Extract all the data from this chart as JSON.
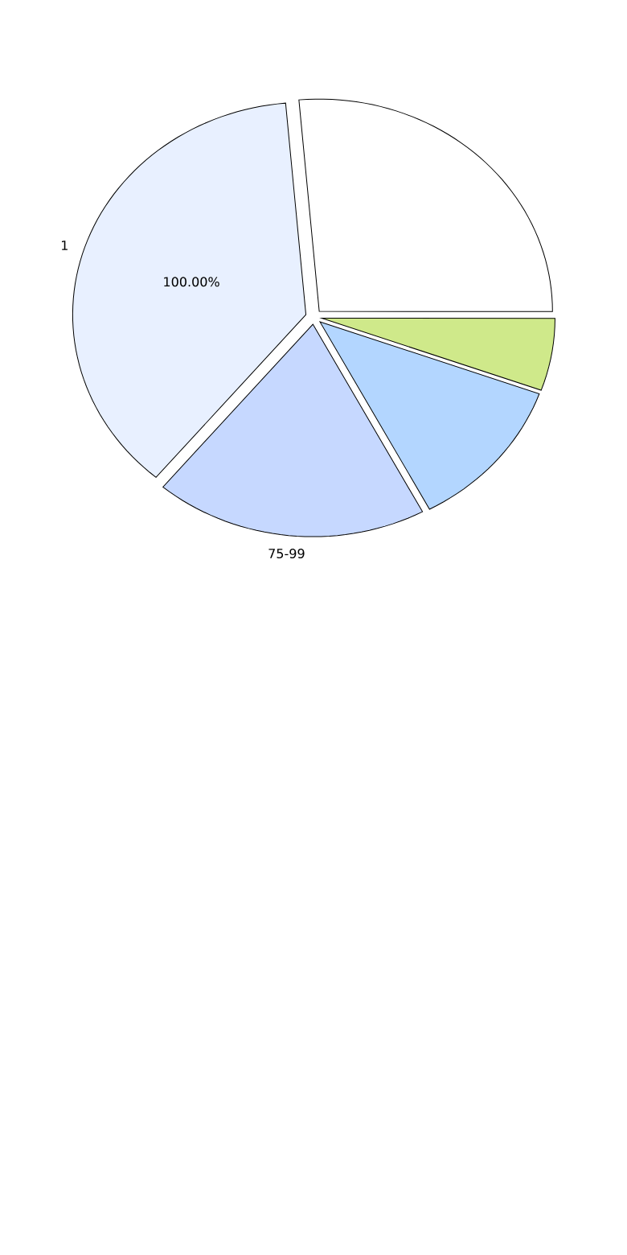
{
  "chart_data": {
    "type": "pie",
    "categories": [
      null,
      null,
      null,
      "75-99",
      "1"
    ],
    "values": [
      26.4,
      5.5,
      11.7,
      18.9,
      37.5
    ],
    "colors": [
      "#ffffff",
      "#cfe98a",
      "#b3d6ff",
      "#c6d8ff",
      "#e8f0ff"
    ],
    "annotations": [
      "100.00%"
    ]
  }
}
